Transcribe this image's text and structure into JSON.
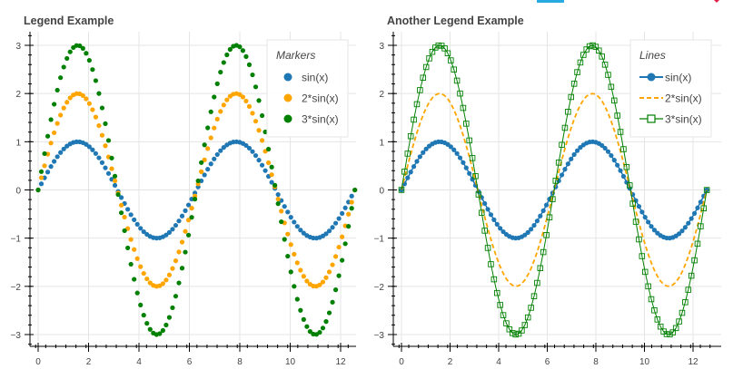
{
  "chart_data": [
    {
      "type": "scatter",
      "title": "Another Legend Example",
      "title_text": "Legend Example",
      "xlabel": "",
      "ylabel": "",
      "xlim": [
        -0.6,
        13.2
      ],
      "ylim": [
        -3.3,
        3.3
      ],
      "x_ticks": [
        0,
        2,
        4,
        6,
        8,
        10,
        12
      ],
      "y_ticks": [
        -3,
        -2,
        -1,
        0,
        1,
        2,
        3
      ],
      "x_tick_labels": [
        "0",
        "2",
        "4",
        "6",
        "8",
        "10",
        "12"
      ],
      "y_tick_labels": [
        "−3",
        "−2",
        "−1",
        "0",
        "1",
        "2",
        "3"
      ],
      "grid": true,
      "legend": {
        "title": "Markers",
        "placement": "top-right"
      },
      "x_range": {
        "start": 0,
        "end": 12.566,
        "points": 100
      },
      "series": [
        {
          "name": "sin(x)",
          "amplitude": 1,
          "color": "#1f77b4",
          "marker": "circle"
        },
        {
          "name": "2*sin(x)",
          "amplitude": 2,
          "color": "#ffa500",
          "marker": "circle"
        },
        {
          "name": "3*sin(x)",
          "amplitude": 3,
          "color": "#008000",
          "marker": "circle"
        }
      ]
    },
    {
      "type": "line",
      "title": "Another Legend Example",
      "xlabel": "",
      "ylabel": "",
      "xlim": [
        -0.6,
        13.2
      ],
      "ylim": [
        -3.3,
        3.3
      ],
      "x_ticks": [
        0,
        2,
        4,
        6,
        8,
        10,
        12
      ],
      "y_ticks": [
        -3,
        -2,
        -1,
        0,
        1,
        2,
        3
      ],
      "x_tick_labels": [
        "0",
        "2",
        "4",
        "6",
        "8",
        "10",
        "12"
      ],
      "y_tick_labels": [
        "−3",
        "−2",
        "−1",
        "0",
        "1",
        "2",
        "3"
      ],
      "grid": true,
      "legend": {
        "title": "Lines",
        "placement": "top-right"
      },
      "x_range": {
        "start": 0,
        "end": 12.566,
        "points": 100
      },
      "series": [
        {
          "name": "sin(x)",
          "amplitude": 1,
          "color": "#1f77b4",
          "style": "line-circle"
        },
        {
          "name": "2*sin(x)",
          "amplitude": 2,
          "color": "#ffa500",
          "style": "dashed"
        },
        {
          "name": "3*sin(x)",
          "amplitude": 3,
          "color": "#008000",
          "style": "line-square"
        }
      ]
    }
  ],
  "toolbar_colors": {
    "active": "#26aae1",
    "accent": "#e0204a"
  }
}
